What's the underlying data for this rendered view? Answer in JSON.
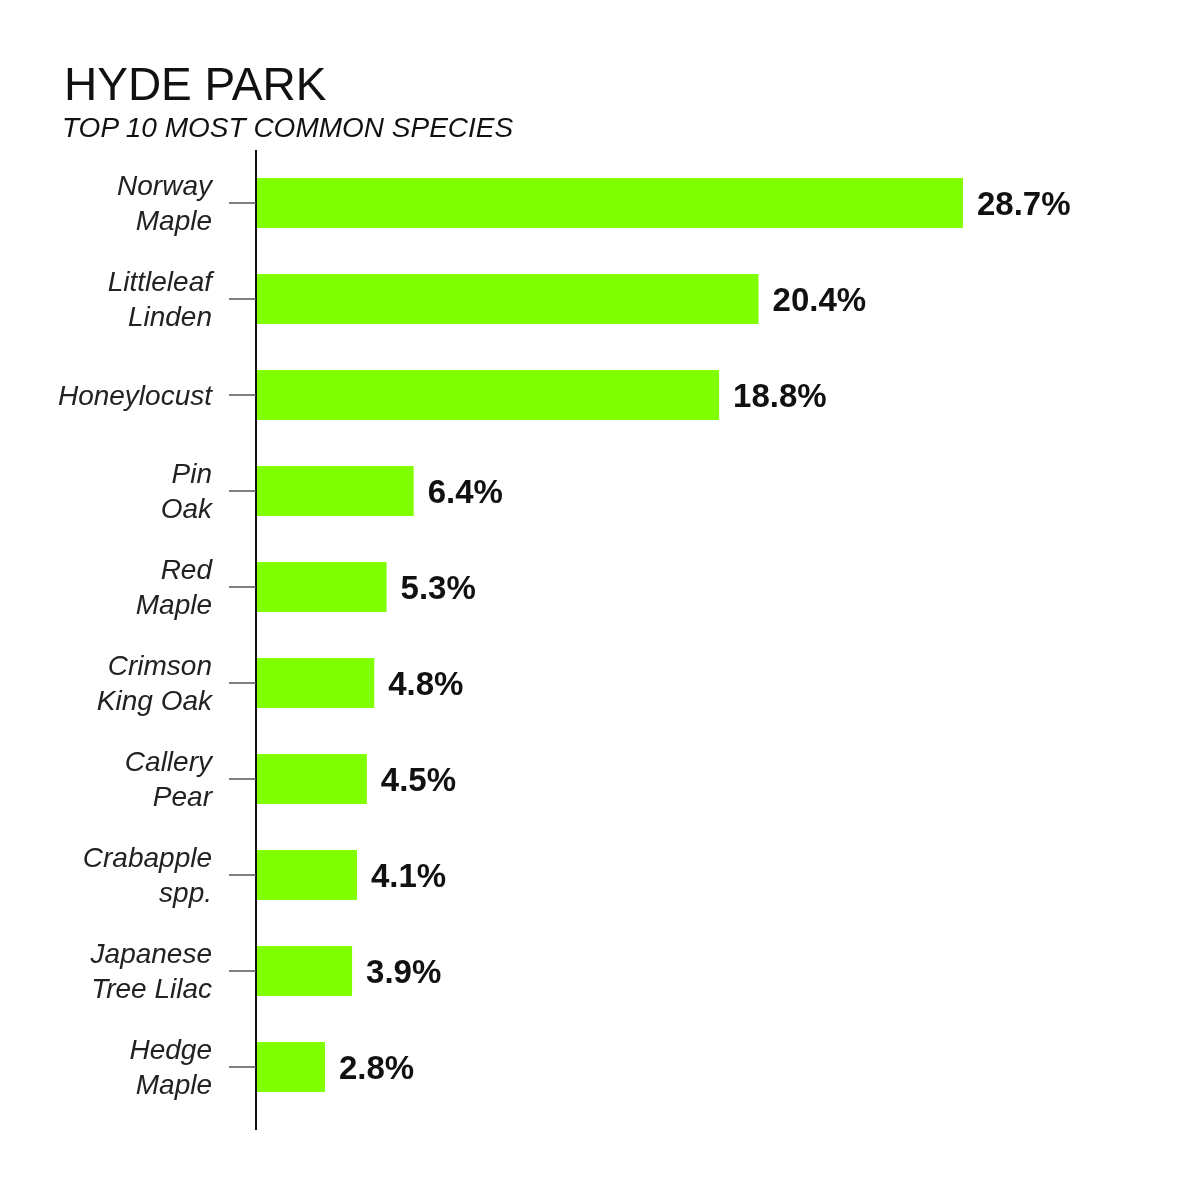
{
  "chart_data": {
    "type": "bar",
    "orientation": "horizontal",
    "title": "HYDE PARK",
    "subtitle": "TOP 10 MOST COMMON SPECIES",
    "categories": [
      "Norway\nMaple",
      "Littleleaf\nLinden",
      "Honeylocust",
      "Pin\nOak",
      "Red\nMaple",
      "Crimson\nKing Oak",
      "Callery\nPear",
      "Crabapple\nspp.",
      "Japanese\nTree Lilac",
      "Hedge\nMaple"
    ],
    "values": [
      28.7,
      20.4,
      18.8,
      6.4,
      5.3,
      4.8,
      4.5,
      4.1,
      3.9,
      2.8
    ],
    "value_labels": [
      "28.7%",
      "20.4%",
      "18.8%",
      "6.4%",
      "5.3%",
      "4.8%",
      "4.5%",
      "4.1%",
      "3.9%",
      "2.8%"
    ],
    "color": "#7fff00",
    "tick_labels": "y"
  }
}
